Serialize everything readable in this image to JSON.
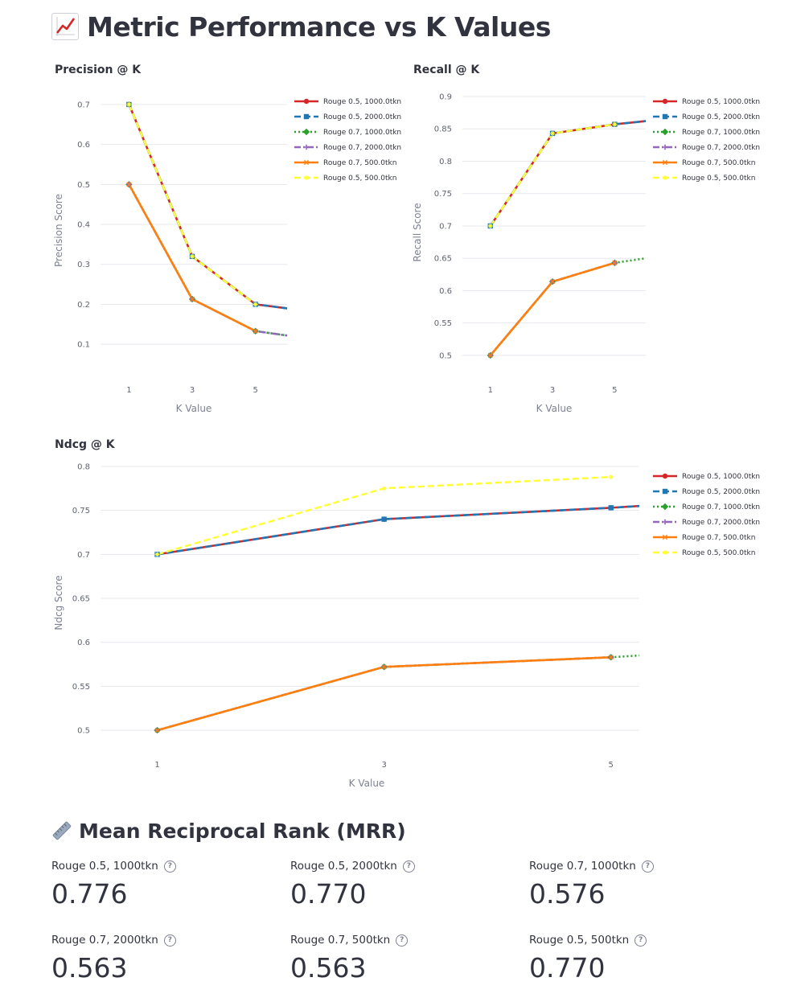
{
  "page": {
    "title": "Metric Performance vs K Values",
    "title_icon": "chart-increasing-icon"
  },
  "legend_labels": [
    "Rouge 0.5, 1000.0tkn",
    "Rouge 0.5, 2000.0tkn",
    "Rouge 0.7, 1000.0tkn",
    "Rouge 0.7, 2000.0tkn",
    "Rouge 0.7, 500.0tkn",
    "Rouge 0.5, 500.0tkn"
  ],
  "series_styles": [
    {
      "color": "#d62728",
      "dash": "solid",
      "marker": "circle"
    },
    {
      "color": "#1f77b4",
      "dash": "dash",
      "marker": "square"
    },
    {
      "color": "#2ca02c",
      "dash": "dot",
      "marker": "diamond"
    },
    {
      "color": "#9467bd",
      "dash": "dashdot",
      "marker": "cross"
    },
    {
      "color": "#ff7f0e",
      "dash": "solid",
      "marker": "x"
    },
    {
      "color": "#ffff33",
      "dash": "dash",
      "marker": "star"
    }
  ],
  "chart_data": [
    {
      "type": "line",
      "title": "Precision @ K",
      "xlabel": "K Value",
      "ylabel": "Precision Score",
      "x": [
        1,
        3,
        5,
        6
      ],
      "x_ticks": [
        1,
        3,
        5
      ],
      "xlim": [
        0.1,
        6.0
      ],
      "ylim": [
        0.05,
        0.72
      ],
      "y_ticks": [
        0.1,
        0.2,
        0.3,
        0.4,
        0.5,
        0.6,
        0.7
      ],
      "grid": true,
      "legend_position": "right",
      "series": [
        {
          "name": "Rouge 0.5, 1000.0tkn",
          "values": [
            0.7,
            0.32,
            0.2,
            0.19
          ]
        },
        {
          "name": "Rouge 0.5, 2000.0tkn",
          "values": [
            0.7,
            0.32,
            0.2,
            0.19
          ]
        },
        {
          "name": "Rouge 0.7, 1000.0tkn",
          "values": [
            0.5,
            0.213,
            0.133,
            0.122
          ]
        },
        {
          "name": "Rouge 0.7, 2000.0tkn",
          "values": [
            0.5,
            0.213,
            0.133,
            0.122
          ]
        },
        {
          "name": "Rouge 0.7, 500.0tkn",
          "values": [
            0.5,
            0.213,
            0.133,
            null
          ]
        },
        {
          "name": "Rouge 0.5, 500.0tkn",
          "values": [
            0.7,
            0.32,
            0.2,
            null
          ]
        }
      ]
    },
    {
      "type": "line",
      "title": "Recall @ K",
      "xlabel": "K Value",
      "ylabel": "Recall Score",
      "x": [
        1,
        3,
        5,
        6
      ],
      "x_ticks": [
        1,
        3,
        5
      ],
      "xlim": [
        0.1,
        6.0
      ],
      "ylim": [
        0.48,
        0.9
      ],
      "y_ticks": [
        0.5,
        0.55,
        0.6,
        0.65,
        0.7,
        0.75,
        0.8,
        0.85,
        0.9
      ],
      "grid": true,
      "legend_position": "right",
      "series": [
        {
          "name": "Rouge 0.5, 1000.0tkn",
          "values": [
            0.7,
            0.843,
            0.857,
            0.862
          ]
        },
        {
          "name": "Rouge 0.5, 2000.0tkn",
          "values": [
            0.7,
            0.843,
            0.857,
            0.862
          ]
        },
        {
          "name": "Rouge 0.7, 1000.0tkn",
          "values": [
            0.5,
            0.614,
            0.643,
            0.65
          ]
        },
        {
          "name": "Rouge 0.7, 2000.0tkn",
          "values": [
            0.5,
            0.614,
            0.643,
            null
          ]
        },
        {
          "name": "Rouge 0.7, 500.0tkn",
          "values": [
            0.5,
            0.614,
            0.643,
            null
          ]
        },
        {
          "name": "Rouge 0.5, 500.0tkn",
          "values": [
            0.7,
            0.843,
            0.857,
            null
          ]
        }
      ]
    },
    {
      "type": "line",
      "title": "Ndcg @ K",
      "xlabel": "K Value",
      "ylabel": "Ndcg Score",
      "x": [
        1,
        3,
        5,
        5.25
      ],
      "x_ticks": [
        1,
        3,
        5
      ],
      "xlim": [
        0.5,
        5.25
      ],
      "ylim": [
        0.49,
        0.8
      ],
      "y_ticks": [
        0.5,
        0.55,
        0.6,
        0.65,
        0.7,
        0.75,
        0.8
      ],
      "grid": true,
      "legend_position": "right",
      "series": [
        {
          "name": "Rouge 0.5, 1000.0tkn",
          "values": [
            0.7,
            0.74,
            0.753,
            0.755
          ]
        },
        {
          "name": "Rouge 0.5, 2000.0tkn",
          "values": [
            0.7,
            0.74,
            0.753,
            0.755
          ]
        },
        {
          "name": "Rouge 0.7, 1000.0tkn",
          "values": [
            0.5,
            0.572,
            0.583,
            0.585
          ]
        },
        {
          "name": "Rouge 0.7, 2000.0tkn",
          "values": [
            0.5,
            0.572,
            0.583,
            null
          ]
        },
        {
          "name": "Rouge 0.7, 500.0tkn",
          "values": [
            0.5,
            0.572,
            0.583,
            null
          ]
        },
        {
          "name": "Rouge 0.5, 500.0tkn",
          "values": [
            0.7,
            0.775,
            0.788,
            null
          ]
        }
      ]
    }
  ],
  "mrr": {
    "title": "Mean Reciprocal Rank (MRR)",
    "title_icon": "ruler-icon",
    "metrics": [
      {
        "label": "Rouge 0.5, 1000tkn",
        "value": "0.776"
      },
      {
        "label": "Rouge 0.5, 2000tkn",
        "value": "0.770"
      },
      {
        "label": "Rouge 0.7, 1000tkn",
        "value": "0.576"
      },
      {
        "label": "Rouge 0.7, 2000tkn",
        "value": "0.563"
      },
      {
        "label": "Rouge 0.7, 500tkn",
        "value": "0.563"
      },
      {
        "label": "Rouge 0.5, 500tkn",
        "value": "0.770"
      }
    ],
    "help_glyph": "?"
  }
}
